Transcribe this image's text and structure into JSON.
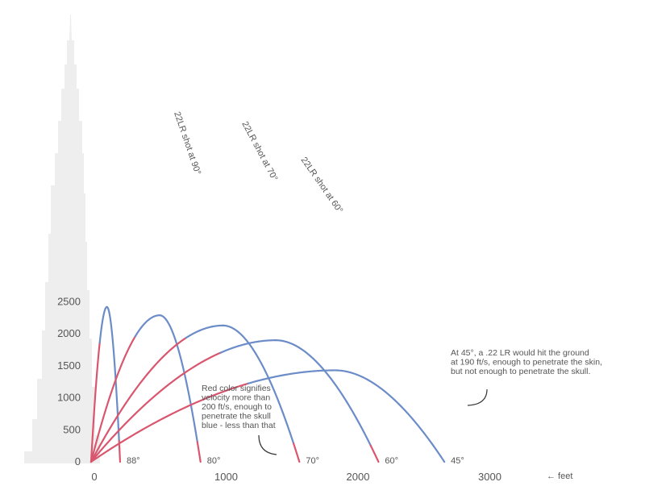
{
  "chart_data": {
    "type": "line",
    "x_unit": "feet",
    "x_unit_label": "← feet",
    "x_ticks": [
      0,
      1000,
      2000,
      3000
    ],
    "y_ticks": [
      0,
      500,
      1000,
      1500,
      2000,
      2500
    ],
    "xlim": [
      -500,
      3500
    ],
    "ylim": [
      0,
      2600
    ],
    "colors": {
      "fast": "#d9566e",
      "slow": "#6b8cc8",
      "building": "#eeeeee"
    },
    "series": [
      {
        "label": "88°",
        "max_x": 220,
        "apex_x": 120,
        "apex_y": 2420,
        "red_until": 0.52
      },
      {
        "label": "80°",
        "max_x": 830,
        "apex_x": 520,
        "apex_y": 2290,
        "red_until": 0.62
      },
      {
        "label": "70°",
        "max_x": 1580,
        "apex_x": 1000,
        "apex_y": 2130,
        "red_until": 0.7
      },
      {
        "label": "60°",
        "max_x": 2180,
        "apex_x": 1400,
        "apex_y": 1900,
        "red_until": 0.68
      },
      {
        "label": "45°",
        "max_x": 2680,
        "apex_x": 1850,
        "apex_y": 1430,
        "red_until": 0.62
      }
    ],
    "curve_labels": [
      {
        "text": "22LR shot at 90°"
      },
      {
        "text": "22LR shot at 70°"
      },
      {
        "text": "22LR shot at 60°"
      }
    ],
    "annotations": [
      {
        "lines": [
          "At 45°, a .22 LR would hit the ground",
          "at 190 ft/s, enough to penetrate the skin,",
          "but not enough to penetrate the skull."
        ]
      },
      {
        "lines": [
          "Red color signifies",
          "velocity more than",
          "200 ft/s, enough to",
          "penetrate the skull",
          "blue - less than that"
        ]
      }
    ]
  }
}
